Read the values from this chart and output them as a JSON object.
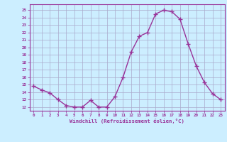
{
  "x": [
    0,
    1,
    2,
    3,
    4,
    5,
    6,
    7,
    8,
    9,
    10,
    11,
    12,
    13,
    14,
    15,
    16,
    17,
    18,
    19,
    20,
    21,
    22,
    23
  ],
  "y": [
    14.8,
    14.3,
    13.9,
    13.0,
    12.2,
    12.0,
    12.0,
    12.9,
    12.0,
    12.0,
    13.4,
    16.0,
    19.4,
    21.5,
    22.0,
    24.5,
    25.0,
    24.8,
    23.8,
    20.5,
    17.5,
    15.3,
    13.8,
    13.0
  ],
  "line_color": "#993399",
  "marker": "D",
  "marker_size": 2.5,
  "bg_color": "#cceeff",
  "grid_color": "#aaaacc",
  "xlabel": "Windchill (Refroidissement éolien,°C)",
  "ylabel_ticks": [
    12,
    13,
    14,
    15,
    16,
    17,
    18,
    19,
    20,
    21,
    22,
    23,
    24,
    25
  ],
  "ylim": [
    11.5,
    25.8
  ],
  "xlim": [
    -0.5,
    23.5
  ]
}
